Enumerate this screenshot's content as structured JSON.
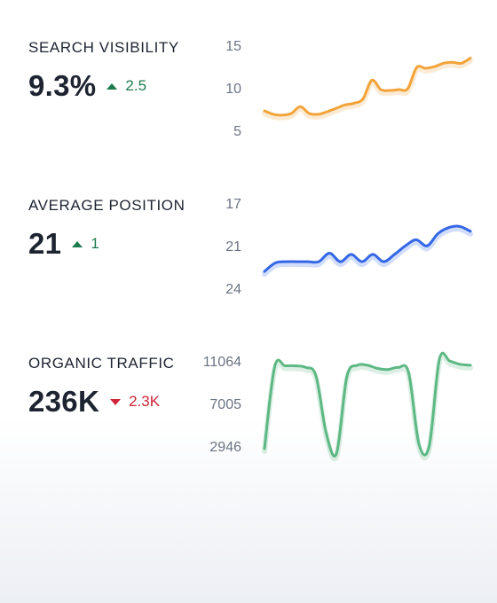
{
  "metrics": [
    {
      "label": "SEARCH VISIBILITY",
      "value": "9.3%",
      "delta": "2.5",
      "direction": "up",
      "ticks": [
        "15",
        "10",
        "5"
      ],
      "color": "#f2a33a",
      "icon": "triangle-up-icon"
    },
    {
      "label": "AVERAGE POSITION",
      "value": "21",
      "delta": "1",
      "direction": "up",
      "ticks": [
        "17",
        "21",
        "24"
      ],
      "color": "#3466e6",
      "icon": "triangle-up-icon"
    },
    {
      "label": "ORGANIC TRAFFIC",
      "value": "236K",
      "delta": "2.3K",
      "direction": "down",
      "ticks": [
        "11064",
        "7005",
        "2946"
      ],
      "color": "#5db883",
      "icon": "triangle-down-icon"
    }
  ],
  "chart_data": [
    {
      "type": "line",
      "ylim": [
        5,
        15
      ],
      "tick_labels": [
        "15",
        "10",
        "5"
      ],
      "values": [
        7.6,
        7.2,
        7.1,
        7.3,
        8.1,
        7.3,
        7.2,
        7.5,
        7.9,
        8.3,
        8.5,
        9.0,
        11.2,
        10.1,
        10.0,
        10.1,
        10.2,
        12.7,
        12.6,
        12.8,
        13.2,
        13.3,
        13.2,
        13.8
      ]
    },
    {
      "type": "line",
      "ylim": [
        17,
        24
      ],
      "inverted": true,
      "tick_labels": [
        "17",
        "21",
        "24"
      ],
      "values": [
        22.4,
        21.7,
        21.6,
        21.6,
        21.6,
        21.6,
        20.9,
        21.6,
        21.0,
        21.6,
        21.0,
        21.6,
        21.0,
        20.3,
        19.8,
        20.3,
        19.3,
        18.8,
        18.7,
        19.1
      ]
    },
    {
      "type": "line",
      "ylim": [
        2946,
        11064
      ],
      "tick_labels": [
        "11064",
        "7005",
        "2946"
      ],
      "values": [
        2946,
        10800,
        10850,
        10850,
        10700,
        9900,
        4400,
        2500,
        9800,
        10900,
        10900,
        10600,
        10500,
        10700,
        10200,
        3400,
        3200,
        11500,
        11300,
        11000,
        10900
      ]
    }
  ]
}
